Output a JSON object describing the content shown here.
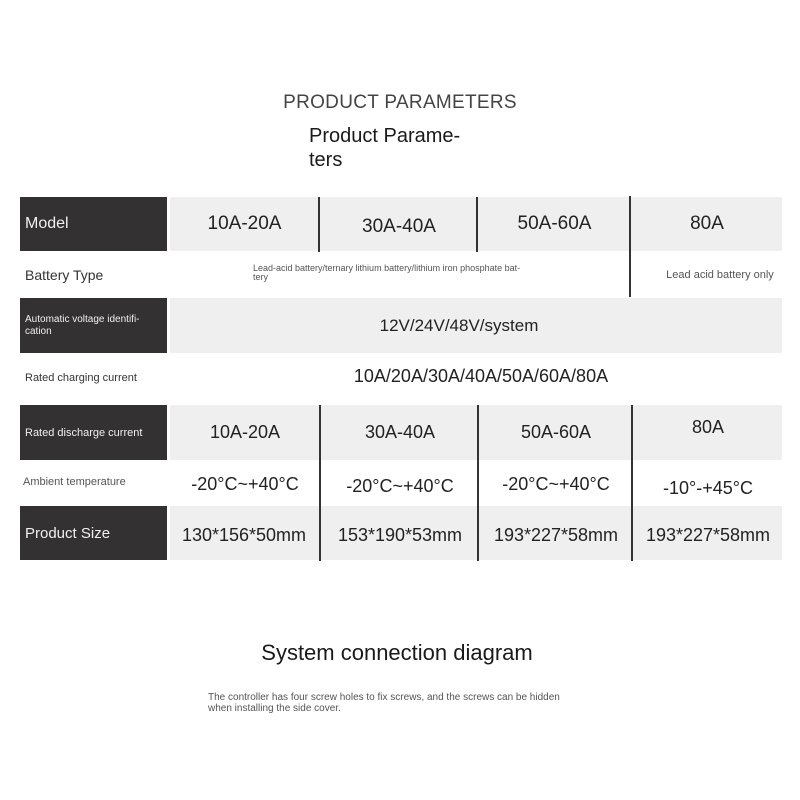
{
  "heading": "PRODUCT PARAMETERS",
  "subheading_line1": "Product Parame-",
  "subheading_line2": "ters",
  "table": {
    "model": {
      "label": "Model",
      "values": [
        "10A-20A",
        "30A-40A",
        "50A-60A",
        "80A"
      ]
    },
    "battery_type": {
      "label": "Battery Type",
      "value_main": "Lead-acid battery/ternary lithium battery/lithium iron phosphate bat-",
      "value_main_2": "tery",
      "value_80a": "Lead acid battery only"
    },
    "voltage": {
      "label": "Automatic voltage identifi-",
      "label_2": "cation",
      "value": "12V/24V/48V/system"
    },
    "charging": {
      "label": "Rated charging current",
      "value": "10A/20A/30A/40A/50A/60A/80A"
    },
    "discharge": {
      "label": "Rated discharge current",
      "values": [
        "10A-20A",
        "30A-40A",
        "50A-60A",
        "80A"
      ]
    },
    "temperature": {
      "label": "Ambient temperature",
      "values": [
        "-20°C~+40°C",
        "-20°C~+40°C",
        "-20°C~+40°C",
        "-10°-+45°C"
      ]
    },
    "size": {
      "label": "Product Size",
      "values": [
        "130*156*50mm",
        "153*190*53mm",
        "193*227*58mm",
        "193*227*58mm"
      ]
    }
  },
  "diagram_title": "System connection diagram",
  "note_line1": "The controller has four screw holes to fix screws, and the screws can be hidden",
  "note_line2": "when installing the side cover."
}
